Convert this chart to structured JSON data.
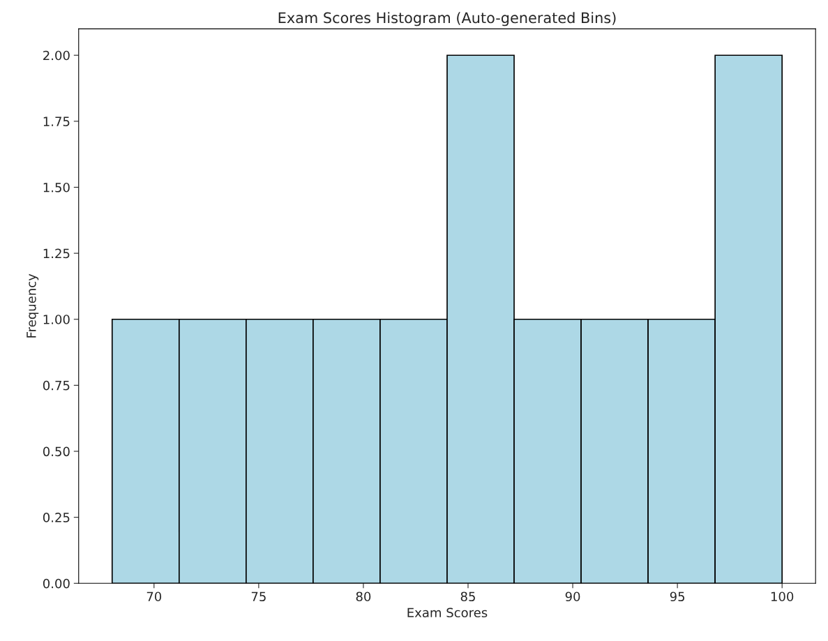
{
  "chart_data": {
    "type": "histogram",
    "title": "Exam Scores Histogram (Auto-generated Bins)",
    "xlabel": "Exam Scores",
    "ylabel": "Frequency",
    "bins": [
      68,
      71.2,
      74.4,
      77.6,
      80.8,
      84,
      87.2,
      90.4,
      93.6,
      96.8,
      100
    ],
    "values": [
      1,
      1,
      1,
      1,
      1,
      2,
      1,
      1,
      1,
      2
    ],
    "color": "#add8e6",
    "xlim": [
      66.4,
      101.6
    ],
    "xticks": [
      70,
      75,
      80,
      85,
      90,
      95,
      100
    ],
    "ylim": [
      0,
      2.1
    ],
    "yticks": [
      {
        "value": 0,
        "label": "0.00"
      },
      {
        "value": 0.25,
        "label": "0.25"
      },
      {
        "value": 0.5,
        "label": "0.50"
      },
      {
        "value": 0.75,
        "label": "0.75"
      },
      {
        "value": 1,
        "label": "1.00"
      },
      {
        "value": 1.25,
        "label": "1.25"
      },
      {
        "value": 1.5,
        "label": "1.50"
      },
      {
        "value": 1.75,
        "label": "1.75"
      },
      {
        "value": 2,
        "label": "2.00"
      }
    ],
    "grid": false
  }
}
